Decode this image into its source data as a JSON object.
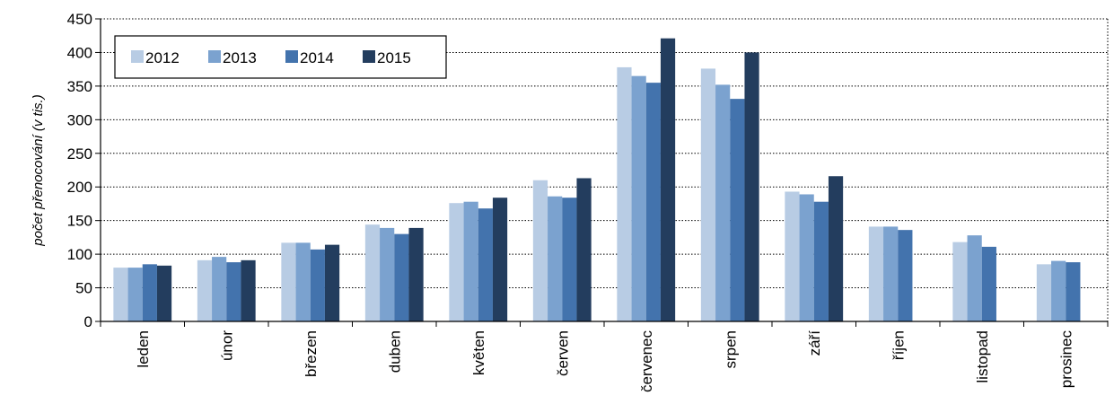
{
  "chart_data": {
    "type": "bar",
    "title": "",
    "xlabel": "",
    "ylabel": "počet přenocování (v tis.)",
    "ylim": [
      0,
      450
    ],
    "yticks": [
      0,
      50,
      100,
      150,
      200,
      250,
      300,
      350,
      400,
      450
    ],
    "grid": "horizontal dotted",
    "legend_position": "top-left",
    "categories": [
      "leden",
      "únor",
      "březen",
      "duben",
      "květen",
      "červen",
      "červenec",
      "srpen",
      "září",
      "říjen",
      "listopad",
      "prosinec"
    ],
    "series": [
      {
        "name": "2012",
        "color": "#b8cce4",
        "values": [
          80,
          91,
          117,
          144,
          176,
          210,
          378,
          376,
          193,
          141,
          118,
          85
        ]
      },
      {
        "name": "2013",
        "color": "#7ba2cf",
        "values": [
          80,
          96,
          117,
          139,
          178,
          186,
          365,
          352,
          189,
          141,
          128,
          90
        ]
      },
      {
        "name": "2014",
        "color": "#4373ad",
        "values": [
          85,
          88,
          107,
          130,
          168,
          184,
          355,
          331,
          178,
          136,
          111,
          88
        ]
      },
      {
        "name": "2015",
        "color": "#233d5e",
        "values": [
          83,
          91,
          114,
          139,
          184,
          213,
          421,
          400,
          216,
          null,
          null,
          null
        ]
      }
    ]
  }
}
